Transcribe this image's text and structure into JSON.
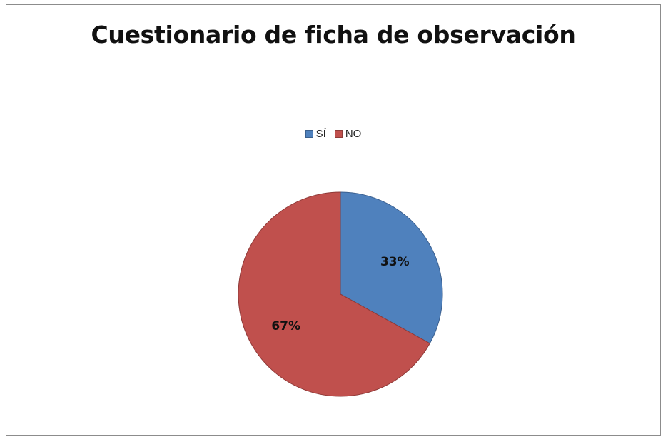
{
  "chart_data": {
    "type": "pie",
    "title": "Cuestionario de ficha de observación",
    "legend_position": "top",
    "slices": [
      {
        "label": "SÍ",
        "value": 33,
        "data_label": "33%",
        "color": "#4f81bd"
      },
      {
        "label": "NO",
        "value": 67,
        "data_label": "67%",
        "color": "#c0504d"
      }
    ]
  }
}
